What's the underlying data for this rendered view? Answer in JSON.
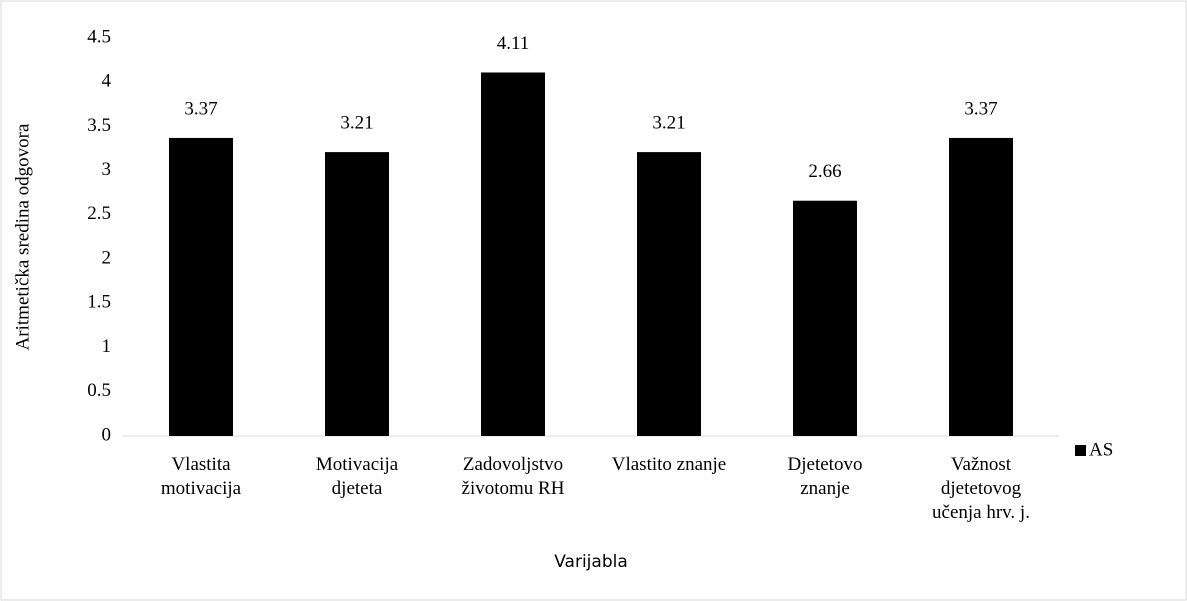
{
  "chart_data": {
    "type": "bar",
    "y_label": "Aritmetička sredina odgovora",
    "x_label": "Varijabla",
    "categories": [
      [
        "Vlastita",
        "motivacija"
      ],
      [
        "Motivacija",
        "djeteta"
      ],
      [
        "Zadovoljstvo",
        "životomu RH"
      ],
      [
        "Vlastito znanje"
      ],
      [
        "Djetetovo",
        "znanje"
      ],
      [
        "Važnost",
        "djetetovog",
        "učenja hrv. j."
      ]
    ],
    "series": [
      {
        "name": "AS",
        "color": "#000000",
        "values": [
          3.37,
          3.21,
          4.11,
          3.21,
          2.66,
          3.37
        ]
      }
    ],
    "ylim": [
      0,
      4.5
    ],
    "yticks": [
      0,
      0.5,
      1,
      1.5,
      2,
      2.5,
      3,
      3.5,
      4,
      4.5
    ],
    "grid": false,
    "legend": "right"
  }
}
